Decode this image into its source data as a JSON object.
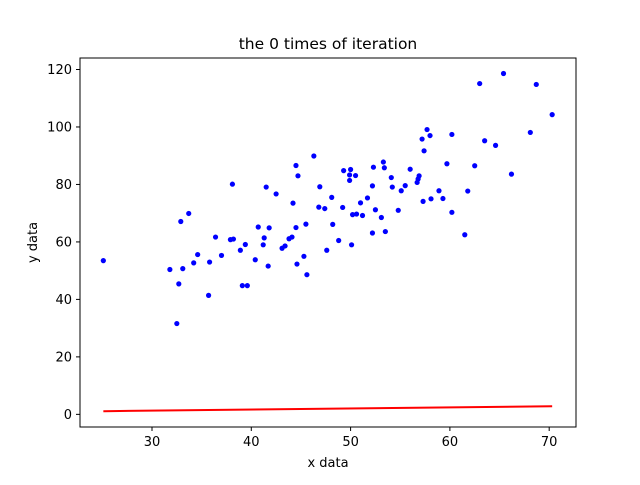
{
  "chart_data": {
    "type": "scatter",
    "title": "the 0 times of iteration",
    "xlabel": "x data",
    "ylabel": "y data",
    "xlim": [
      22.75,
      72.7
    ],
    "ylim": [
      -4.4,
      124.0
    ],
    "xticks": [
      30,
      40,
      50,
      60,
      70
    ],
    "yticks": [
      0,
      20,
      40,
      60,
      80,
      100,
      120
    ],
    "grid": false,
    "colors": {
      "points": "#0000ff",
      "line": "#ff0000",
      "axes": "#000000"
    },
    "series": [
      {
        "kind": "points",
        "points": [
          [
            25.1,
            53.5
          ],
          [
            31.8,
            50.4
          ],
          [
            32.5,
            31.6
          ],
          [
            32.7,
            45.4
          ],
          [
            32.9,
            67.1
          ],
          [
            33.1,
            50.7
          ],
          [
            33.7,
            69.9
          ],
          [
            34.2,
            52.7
          ],
          [
            34.6,
            55.6
          ],
          [
            35.7,
            41.4
          ],
          [
            35.8,
            53.0
          ],
          [
            36.4,
            61.7
          ],
          [
            37.0,
            55.3
          ],
          [
            37.9,
            60.8
          ],
          [
            38.2,
            61.0
          ],
          [
            38.1,
            80.1
          ],
          [
            38.9,
            57.1
          ],
          [
            39.1,
            44.8
          ],
          [
            39.4,
            59.1
          ],
          [
            39.6,
            44.8
          ],
          [
            40.4,
            53.8
          ],
          [
            40.7,
            65.2
          ],
          [
            41.2,
            59.0
          ],
          [
            41.3,
            61.4
          ],
          [
            41.5,
            79.1
          ],
          [
            41.7,
            51.6
          ],
          [
            41.8,
            64.9
          ],
          [
            42.5,
            76.7
          ],
          [
            43.1,
            57.8
          ],
          [
            43.4,
            58.6
          ],
          [
            43.8,
            61.1
          ],
          [
            44.1,
            61.7
          ],
          [
            44.2,
            73.5
          ],
          [
            44.5,
            65.0
          ],
          [
            44.5,
            86.6
          ],
          [
            44.6,
            52.3
          ],
          [
            44.7,
            83.0
          ],
          [
            45.3,
            55.0
          ],
          [
            45.5,
            66.2
          ],
          [
            45.6,
            48.6
          ],
          [
            46.3,
            89.9
          ],
          [
            46.8,
            72.1
          ],
          [
            46.9,
            79.2
          ],
          [
            47.4,
            71.6
          ],
          [
            47.6,
            57.1
          ],
          [
            48.1,
            75.5
          ],
          [
            48.2,
            66.1
          ],
          [
            48.8,
            60.5
          ],
          [
            49.2,
            72.0
          ],
          [
            49.3,
            84.8
          ],
          [
            49.9,
            83.3
          ],
          [
            49.9,
            81.4
          ],
          [
            50.0,
            85.2
          ],
          [
            50.1,
            59.0
          ],
          [
            50.2,
            69.5
          ],
          [
            50.5,
            83.1
          ],
          [
            50.6,
            69.7
          ],
          [
            51.0,
            73.6
          ],
          [
            51.2,
            69.2
          ],
          [
            51.7,
            75.3
          ],
          [
            52.2,
            79.5
          ],
          [
            52.2,
            63.1
          ],
          [
            52.3,
            86.0
          ],
          [
            52.5,
            71.2
          ],
          [
            53.1,
            68.5
          ],
          [
            53.3,
            87.8
          ],
          [
            53.4,
            85.8
          ],
          [
            53.5,
            63.6
          ],
          [
            54.1,
            82.4
          ],
          [
            54.2,
            79.1
          ],
          [
            54.8,
            71.0
          ],
          [
            55.1,
            77.8
          ],
          [
            55.5,
            79.6
          ],
          [
            56.0,
            85.3
          ],
          [
            56.7,
            80.7
          ],
          [
            56.8,
            81.9
          ],
          [
            56.9,
            83.0
          ],
          [
            57.2,
            95.8
          ],
          [
            57.3,
            74.1
          ],
          [
            57.4,
            91.7
          ],
          [
            57.7,
            99.1
          ],
          [
            58.0,
            97.0
          ],
          [
            58.1,
            75.0
          ],
          [
            58.9,
            77.8
          ],
          [
            59.3,
            75.1
          ],
          [
            59.7,
            87.2
          ],
          [
            60.2,
            70.3
          ],
          [
            60.2,
            97.4
          ],
          [
            61.5,
            62.5
          ],
          [
            61.8,
            77.7
          ],
          [
            62.5,
            86.5
          ],
          [
            63.0,
            115.1
          ],
          [
            63.5,
            95.2
          ],
          [
            64.6,
            93.6
          ],
          [
            65.4,
            118.6
          ],
          [
            66.2,
            83.6
          ],
          [
            68.1,
            98.1
          ],
          [
            68.7,
            114.8
          ],
          [
            70.3,
            104.3
          ]
        ]
      },
      {
        "kind": "line",
        "x": [
          25.1,
          70.3
        ],
        "y": [
          1.1,
          2.8
        ]
      }
    ]
  }
}
